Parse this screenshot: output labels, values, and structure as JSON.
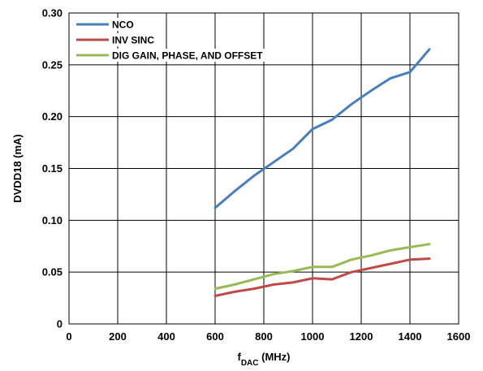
{
  "chart_data": {
    "type": "line",
    "xlabel": "f",
    "xlabel_sub": "DAC",
    "xlabel_unit": " (MHz)",
    "ylabel": "DVDD18 (mA)",
    "xlim": [
      0,
      1600
    ],
    "ylim": [
      0,
      0.3
    ],
    "xticks": [
      0,
      200,
      400,
      600,
      800,
      1000,
      1200,
      1400,
      1600
    ],
    "yticks": [
      0,
      0.05,
      0.1,
      0.15,
      0.2,
      0.25,
      0.3
    ],
    "ytick_labels": [
      "0",
      "0.05",
      "0.10",
      "0.15",
      "0.20",
      "0.25",
      "0.30"
    ],
    "grid": true,
    "legend_position": "top-left",
    "series": [
      {
        "name": "NCO",
        "color": "#4a7ebb",
        "x": [
          600,
          680,
          760,
          840,
          920,
          1000,
          1080,
          1160,
          1240,
          1320,
          1400,
          1480
        ],
        "y": [
          0.112,
          0.128,
          0.143,
          0.156,
          0.169,
          0.188,
          0.197,
          0.212,
          0.225,
          0.237,
          0.243,
          0.265
        ]
      },
      {
        "name": "INV SINC",
        "color": "#be4b48",
        "x": [
          600,
          680,
          760,
          840,
          920,
          1000,
          1080,
          1160,
          1240,
          1320,
          1400,
          1480
        ],
        "y": [
          0.027,
          0.031,
          0.034,
          0.038,
          0.04,
          0.044,
          0.043,
          0.05,
          0.054,
          0.058,
          0.062,
          0.063
        ]
      },
      {
        "name": "DIG GAIN, PHASE, AND OFFSET",
        "color": "#98b954",
        "x": [
          600,
          680,
          760,
          840,
          920,
          1000,
          1080,
          1160,
          1240,
          1320,
          1400,
          1480
        ],
        "y": [
          0.034,
          0.038,
          0.043,
          0.048,
          0.051,
          0.055,
          0.055,
          0.062,
          0.066,
          0.071,
          0.074,
          0.077
        ]
      }
    ]
  }
}
